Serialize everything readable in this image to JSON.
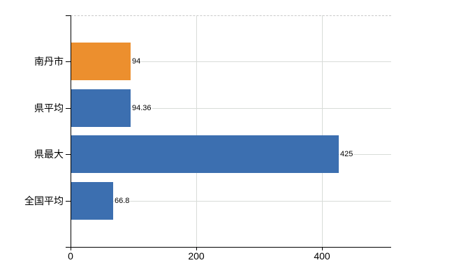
{
  "chart_data": {
    "type": "bar",
    "orientation": "horizontal",
    "title": "",
    "xlabel": "",
    "ylabel": "",
    "categories": [
      "南丹市",
      "県平均",
      "県最大",
      "全国平均"
    ],
    "values": [
      94,
      94.36,
      425,
      66.8
    ],
    "value_labels": [
      "94",
      "94.36",
      "425",
      "66.8"
    ],
    "series": [
      {
        "name": "values",
        "values": [
          94,
          94.36,
          425,
          66.8
        ]
      }
    ],
    "bar_colors": [
      "#EC8F2E",
      "#3C6FB0",
      "#3C6FB0",
      "#3C6FB0"
    ],
    "xlim": [
      0,
      510
    ],
    "xticks": [
      0,
      200,
      400
    ],
    "xtick_labels": [
      "0",
      "200",
      "400"
    ],
    "grid": true,
    "legend": false,
    "colors": {
      "highlight_bar": "#EC8F2E",
      "default_bar": "#3C6FB0",
      "gridline": "#d8dcd8",
      "top_border_dashed": "#c9c9c9",
      "axis": "#000000",
      "text": "#000000",
      "background": "#ffffff"
    }
  }
}
